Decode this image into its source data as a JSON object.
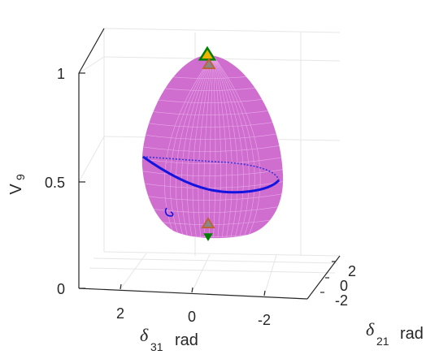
{
  "chart_data": {
    "type": "scatter",
    "projection": "3d",
    "title": "",
    "xlabel": {
      "symbol": "δ",
      "sub": "31",
      "unit": "rad"
    },
    "ylabel": {
      "symbol": "δ",
      "sub": "21",
      "unit": "rad"
    },
    "zlabel": {
      "symbol": "V",
      "sub": "9"
    },
    "x_ticks": [
      "2",
      "0",
      "-2"
    ],
    "y_ticks": [
      "2",
      "0",
      "-2"
    ],
    "z_ticks": [
      "1",
      "0.5",
      "0"
    ],
    "zlim": [
      0,
      1
    ],
    "grid": true,
    "surface": {
      "description_color": "#cc66cc",
      "z_min": 0.27,
      "z_max": 1.0
    },
    "curve": {
      "color": "#1414e0",
      "z_level": 0.5
    },
    "markers": [
      {
        "shape": "triangle-up",
        "fill": "#f0b400",
        "edge": "#008000",
        "z": 1.0
      },
      {
        "shape": "triangle-up",
        "fill": "#888888",
        "edge": "#c06030",
        "z": 0.98
      },
      {
        "shape": "triangle-up",
        "fill": "#888888",
        "edge": "#c06030",
        "z": 0.28
      },
      {
        "shape": "triangle-down",
        "fill": "#008000",
        "edge": "#008000",
        "z": 0.25
      }
    ]
  }
}
